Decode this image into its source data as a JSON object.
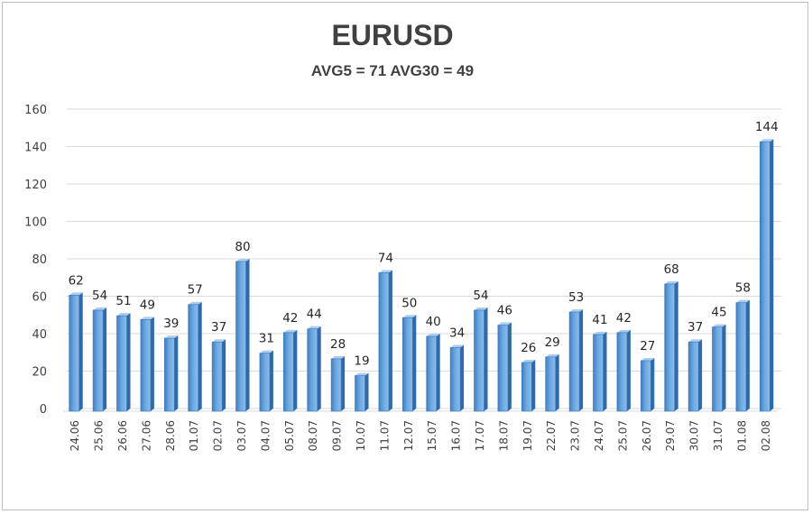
{
  "chart_data": {
    "type": "bar",
    "title": "EURUSD",
    "subtitle": "AVG5 = 71 AVG30 = 49",
    "xlabel": "",
    "ylabel": "",
    "ylim": [
      0,
      160
    ],
    "yticks": [
      0,
      20,
      40,
      60,
      80,
      100,
      120,
      140,
      160
    ],
    "grid": true,
    "legend": "none",
    "bar_color": "#5b9bd5",
    "categories": [
      "24.06",
      "25.06",
      "26.06",
      "27.06",
      "28.06",
      "01.07",
      "02.07",
      "03.07",
      "04.07",
      "05.07",
      "08.07",
      "09.07",
      "10.07",
      "11.07",
      "12.07",
      "15.07",
      "16.07",
      "17.07",
      "18.07",
      "19.07",
      "22.07",
      "23.07",
      "24.07",
      "25.07",
      "26.07",
      "29.07",
      "30.07",
      "31.07",
      "01.08",
      "02.08"
    ],
    "values": [
      62,
      54,
      51,
      49,
      39,
      57,
      37,
      80,
      31,
      42,
      44,
      28,
      19,
      74,
      50,
      40,
      34,
      54,
      46,
      26,
      29,
      53,
      41,
      42,
      27,
      68,
      37,
      45,
      58,
      144
    ]
  }
}
